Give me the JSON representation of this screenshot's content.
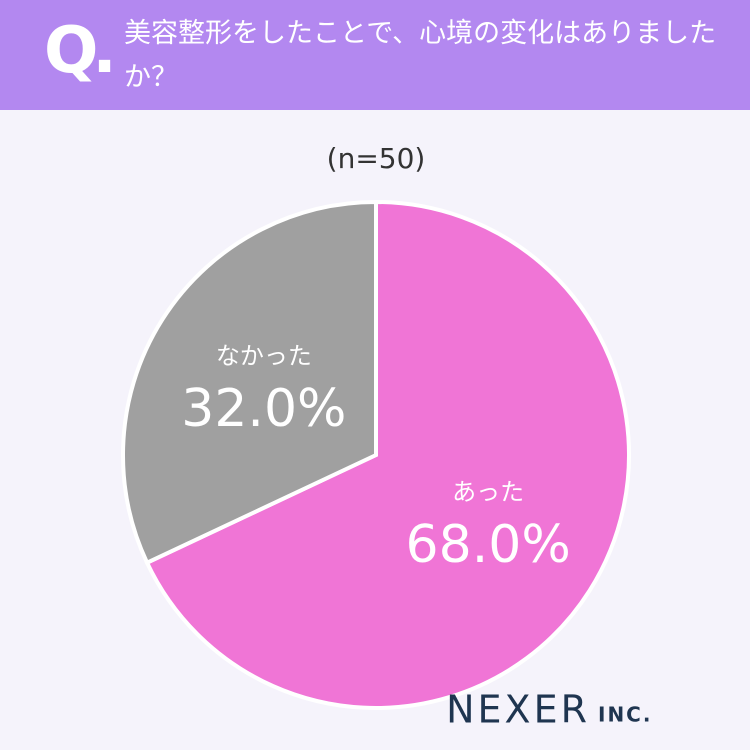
{
  "chart_data": {
    "type": "pie",
    "q_mark": "Q.",
    "title": "美容整形をしたことで、心境の変化はありましたか？",
    "subtitle": "(n=50)",
    "categories": [
      "あった",
      "なかった"
    ],
    "values": [
      68.0,
      32.0
    ],
    "value_labels": [
      "68.0%",
      "32.0%"
    ],
    "colors": [
      "#f075d6",
      "#a0a0a0"
    ],
    "logo": "NEXER",
    "logo_suffix": "INC."
  }
}
